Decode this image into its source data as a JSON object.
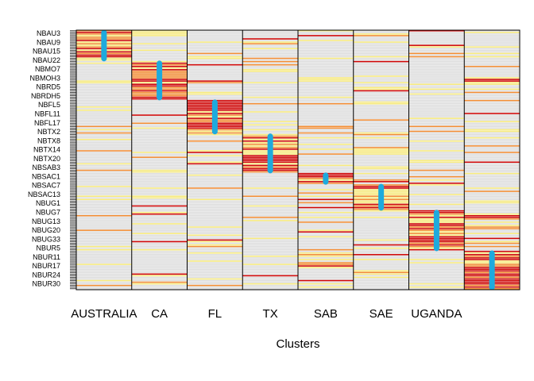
{
  "chart_data": {
    "type": "heatmap",
    "title": "",
    "xlabel": "Clusters",
    "ylabel": "",
    "categories": [
      "AUSTRALIA",
      "CA",
      "FL",
      "TX",
      "SAB",
      "SAE",
      "UGANDA",
      ""
    ],
    "row_labels": [
      "NBAU3",
      "NBAU9",
      "NBAU15",
      "NBAU22",
      "NBMO7",
      "NBMOH3",
      "NBRD5",
      "NBRDH5",
      "NBFL5",
      "NBFL11",
      "NBFL17",
      "NBTX2",
      "NBTX8",
      "NBTX14",
      "NBTX20",
      "NBSAB3",
      "NBSAC1",
      "NBSAC7",
      "NBSAC13",
      "NBUG1",
      "NBUG7",
      "NBUG13",
      "NBUG20",
      "NBUG33",
      "NBUR5",
      "NBUR11",
      "NBUR17",
      "NBUR24",
      "NBUR30"
    ],
    "total_rows": 160,
    "membership_markers": [
      {
        "cluster": "AUSTRALIA",
        "row_start": 0,
        "row_end": 18
      },
      {
        "cluster": "CA",
        "row_start": 19,
        "row_end": 42
      },
      {
        "cluster": "FL",
        "row_start": 43,
        "row_end": 63
      },
      {
        "cluster": "TX",
        "row_start": 64,
        "row_end": 87
      },
      {
        "cluster": "SAB",
        "row_start": 88,
        "row_end": 94
      },
      {
        "cluster": "SAE",
        "row_start": 95,
        "row_end": 110
      },
      {
        "cluster": "UGANDA",
        "row_start": 111,
        "row_end": 135
      },
      {
        "cluster": "",
        "row_start": 136,
        "row_end": 159
      }
    ],
    "colors": {
      "high": "#cc0000",
      "mid": "#f08a30",
      "low": "#f5e87a",
      "none": "#dcdcdc",
      "marker": "#1eaadd"
    }
  }
}
